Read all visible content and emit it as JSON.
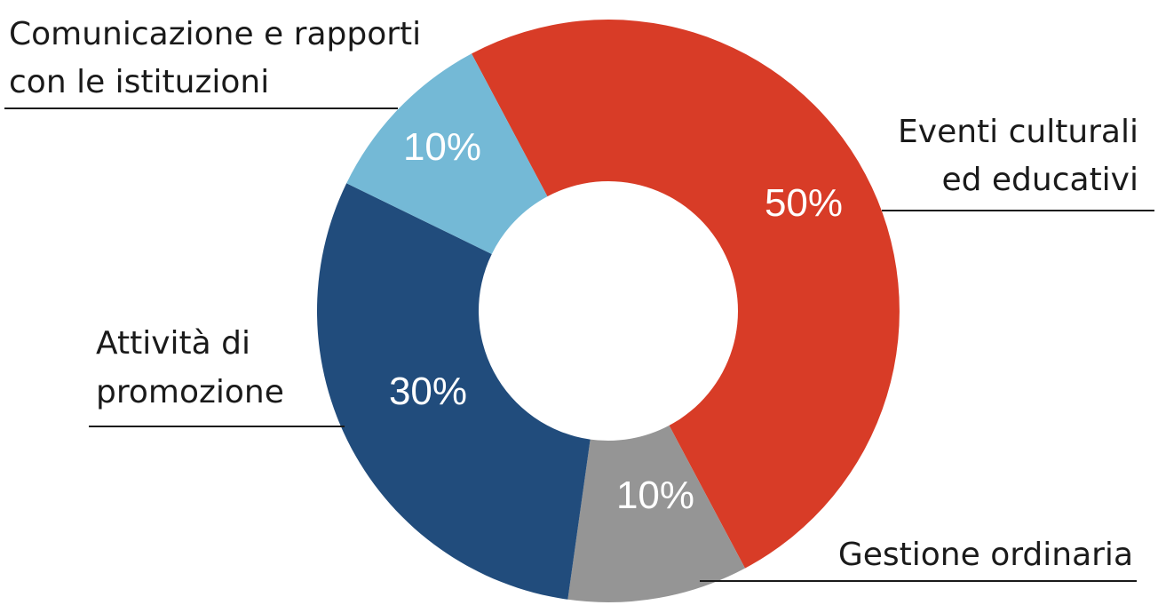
{
  "chart_data": {
    "type": "pie",
    "donut": true,
    "slices": [
      {
        "label": [
          "Eventi culturali",
          "ed educativi"
        ],
        "value": 50,
        "value_label": "50%",
        "color": "#d83c27"
      },
      {
        "label": [
          "Gestione ordinaria"
        ],
        "value": 10,
        "value_label": "10%",
        "color": "#959595"
      },
      {
        "label": [
          "Attività di",
          "promozione"
        ],
        "value": 30,
        "value_label": "30%",
        "color": "#214c7c"
      },
      {
        "label": [
          "Comunicazione e rapporti",
          "con le istituzioni"
        ],
        "value": 10,
        "value_label": "10%",
        "color": "#74b9d6"
      }
    ],
    "legend": "none"
  }
}
